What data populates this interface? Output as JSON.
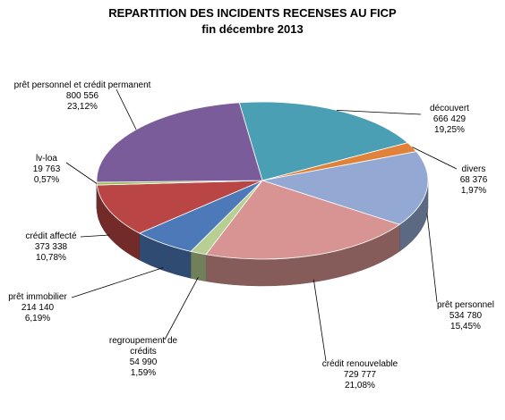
{
  "chart_data": {
    "type": "pie",
    "title": "REPARTITION DES INCIDENTS RECENSES AU FICP",
    "subtitle": "fin décembre 2013",
    "three_d": true,
    "slices": [
      {
        "label": "découvert",
        "value": "666 429",
        "percent": "19,25%",
        "num": 666429,
        "color": "#4A9FB5"
      },
      {
        "label": "divers",
        "value": "68 376",
        "percent": "1,97%",
        "num": 68376,
        "color": "#E0823A"
      },
      {
        "label": "prêt personnel",
        "value": "534 780",
        "percent": "15,45%",
        "num": 534780,
        "color": "#93A9D4"
      },
      {
        "label": "crédit renouvelable",
        "value": "729 777",
        "percent": "21,08%",
        "num": 729777,
        "color": "#D89492"
      },
      {
        "label": "regroupement de crédits",
        "value": "54 990",
        "percent": "1,59%",
        "num": 54990,
        "color": "#B7CF93"
      },
      {
        "label": "prêt immobilier",
        "value": "214 140",
        "percent": "6,19%",
        "num": 214140,
        "color": "#4E79B8"
      },
      {
        "label": "crédit affecté",
        "value": "373 338",
        "percent": "10,78%",
        "num": 373338,
        "color": "#B94644"
      },
      {
        "label": "lv-loa",
        "value": "19 763",
        "percent": "0,57%",
        "num": 19763,
        "color": "#9ABB59"
      },
      {
        "label": "prêt personnel et crédit permanent",
        "value": "800 556",
        "percent": "23,12%",
        "num": 800556,
        "color": "#7B5C9B"
      }
    ]
  }
}
